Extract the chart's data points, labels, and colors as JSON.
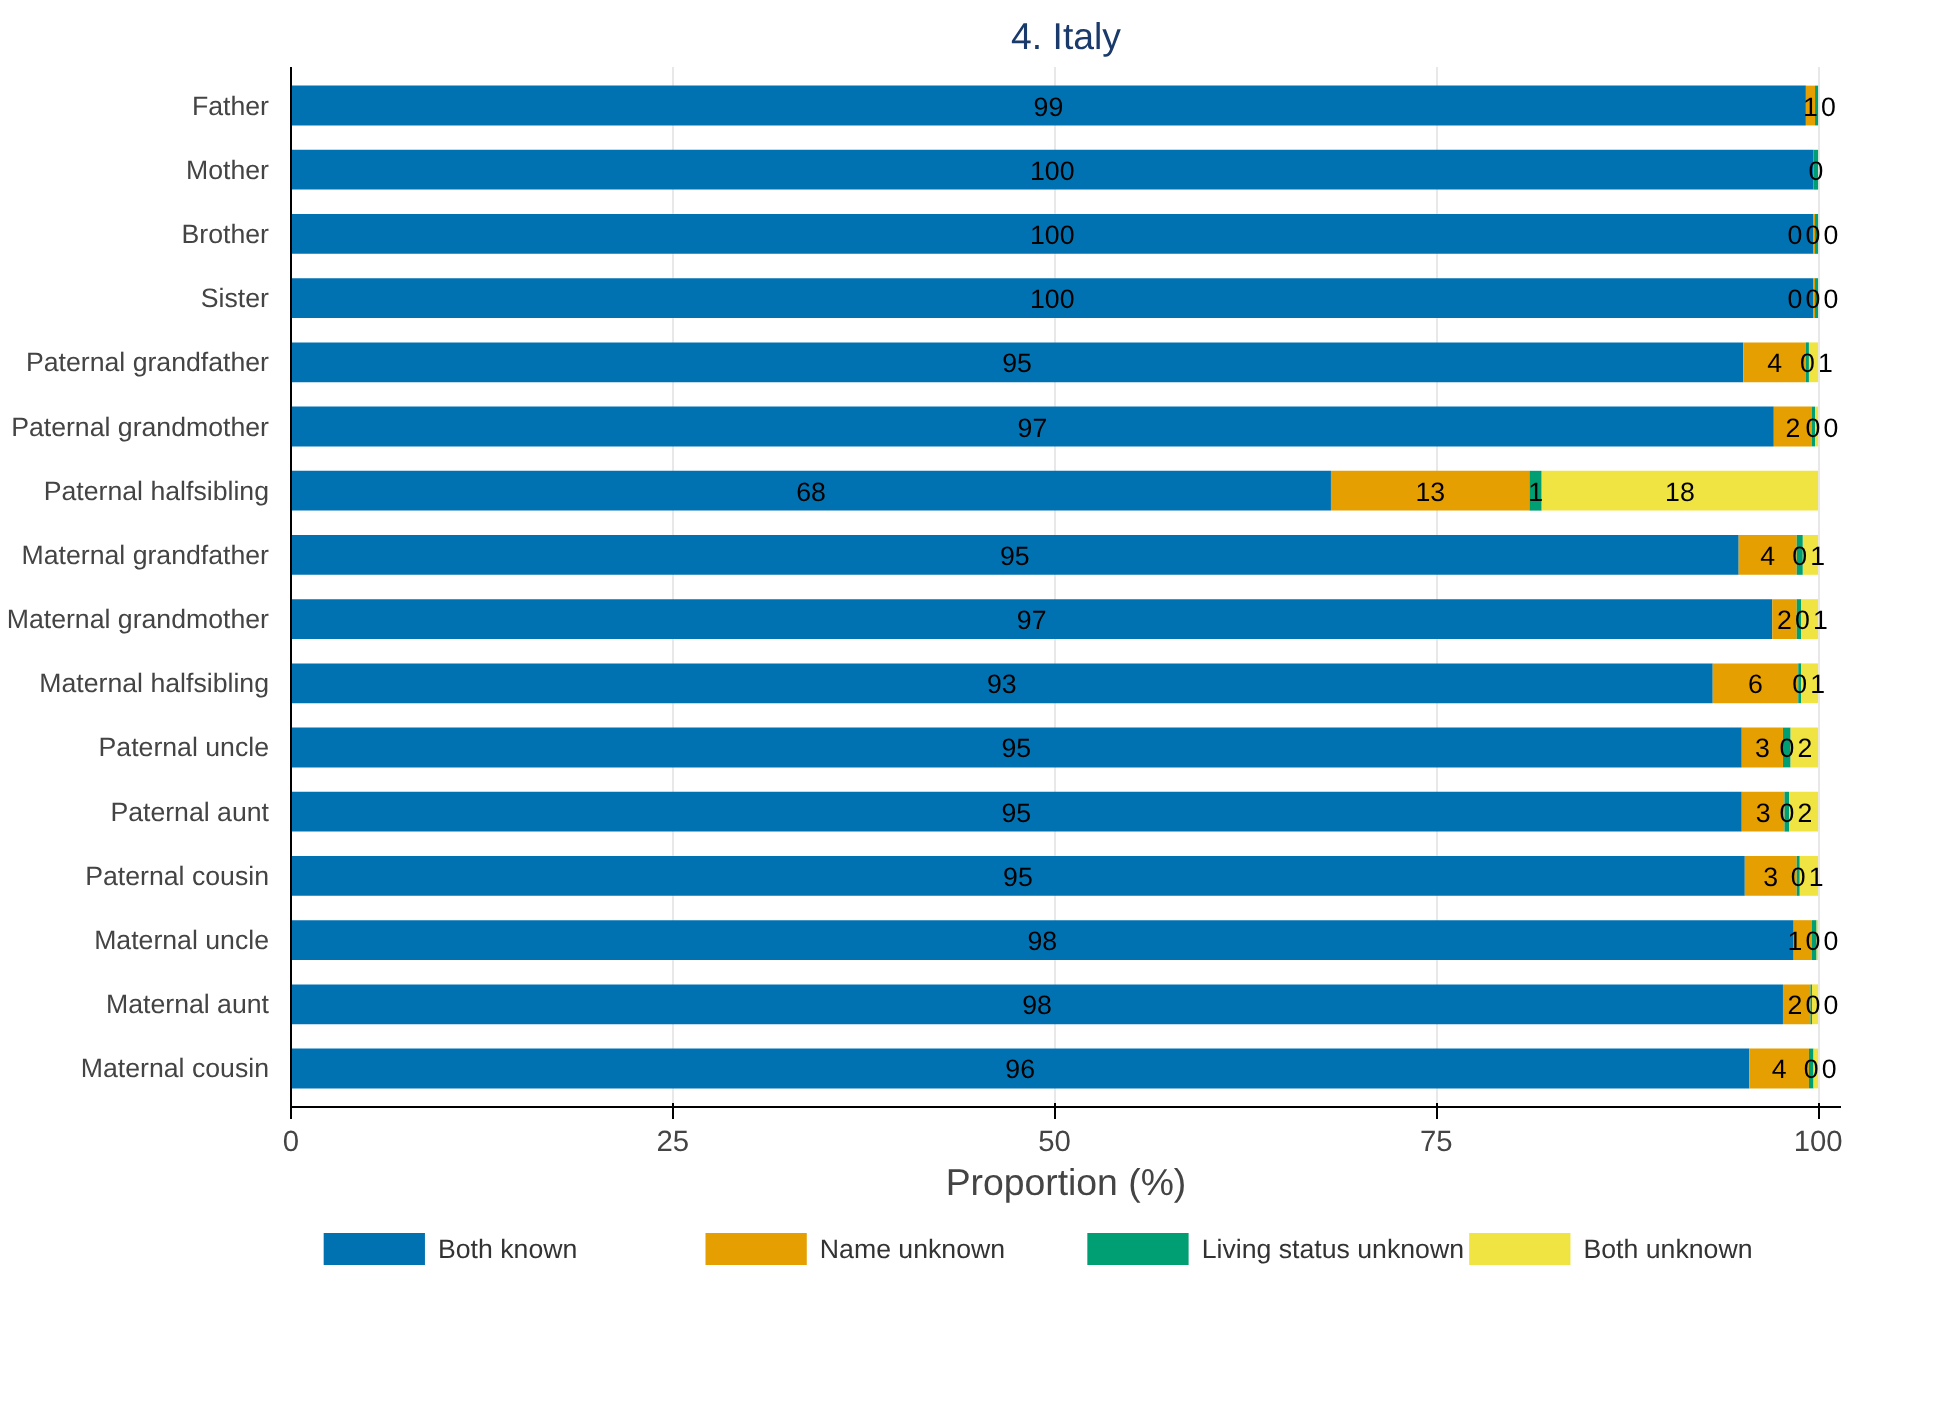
{
  "chart_data": {
    "type": "bar",
    "title": "4. Italy",
    "xlabel": "Proportion (%)",
    "orientation": "horizontal",
    "stacked": true,
    "grid": "x",
    "legend": "bottom",
    "xlim": [
      0,
      101.5
    ],
    "xticks": [
      0,
      25,
      50,
      75,
      100
    ],
    "categories": [
      "Father",
      "Mother",
      "Brother",
      "Sister",
      "Paternal grandfather",
      "Paternal grandmother",
      "Paternal halfsibling",
      "Maternal grandfather",
      "Maternal grandmother",
      "Maternal halfsibling",
      "Paternal uncle",
      "Paternal aunt",
      "Paternal cousin",
      "Maternal uncle",
      "Maternal aunt",
      "Maternal cousin"
    ],
    "series": [
      {
        "name": "Both known",
        "color": "#0072b2",
        "values": [
          99.2,
          99.7,
          99.7,
          99.7,
          95.1,
          97.1,
          68.1,
          94.8,
          97.0,
          93.1,
          95.0,
          95.0,
          95.2,
          98.4,
          97.7,
          95.5
        ],
        "value_labels": [
          "99",
          "100",
          "100",
          "100",
          "95",
          "97",
          "68",
          "95",
          "97",
          "93",
          "95",
          "95",
          "95",
          "98",
          "98",
          "96"
        ]
      },
      {
        "name": "Name unknown",
        "color": "#e69f00",
        "values": [
          0.6,
          0.0,
          0.1,
          0.1,
          4.1,
          2.5,
          13.0,
          3.8,
          1.6,
          5.6,
          2.7,
          2.8,
          3.4,
          1.2,
          1.8,
          3.9
        ],
        "value_labels": [
          "1",
          null,
          "0",
          "0",
          "4",
          "2",
          "13",
          "4",
          "2",
          "6",
          "3",
          "3",
          "3",
          "1",
          "2",
          "4"
        ]
      },
      {
        "name": "Living status unknown",
        "color": "#009e73",
        "values": [
          0.2,
          0.3,
          0.2,
          0.2,
          0.2,
          0.2,
          0.8,
          0.4,
          0.3,
          0.2,
          0.5,
          0.3,
          0.2,
          0.3,
          0.1,
          0.3
        ],
        "value_labels": [
          "0",
          "0",
          "0",
          "0",
          "0",
          "0",
          "1",
          "0",
          "0",
          "0",
          "0",
          "0",
          "0",
          "0",
          "0",
          "0"
        ]
      },
      {
        "name": "Both unknown",
        "color": "#f0e442",
        "values": [
          0.0,
          0.0,
          0.0,
          0.0,
          0.6,
          0.2,
          18.1,
          1.0,
          1.1,
          1.1,
          1.8,
          1.9,
          1.2,
          0.1,
          0.4,
          0.3
        ],
        "value_labels": [
          null,
          null,
          "0",
          "0",
          "1",
          "0",
          "18",
          "1",
          "1",
          "1",
          "2",
          "2",
          "1",
          "0",
          "0",
          "0"
        ]
      }
    ]
  }
}
